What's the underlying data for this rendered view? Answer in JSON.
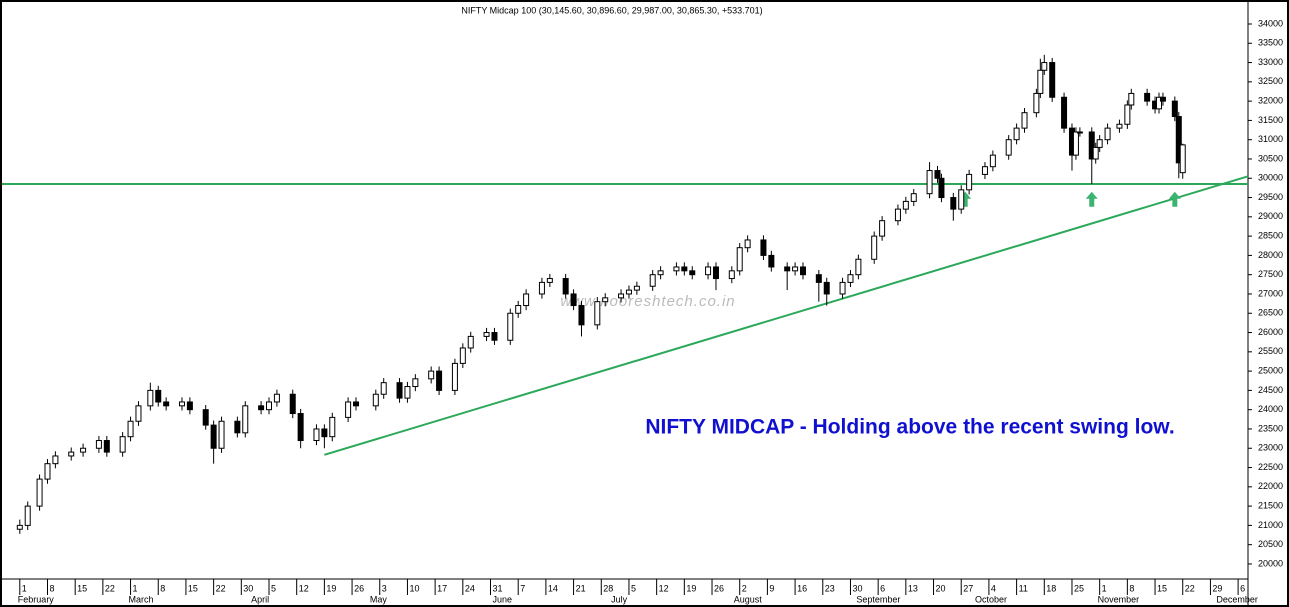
{
  "chart_data": {
    "type": "candlestick",
    "title": "NIFTY Midcap 100 (30,145.60, 30,896.60, 29,987.00, 30,865.30, +533.701)",
    "annotation": "NIFTY MIDCAP - Holding above the recent swing low.",
    "watermark": "www.nooreshtech.co.in",
    "xlim": [
      27.5,
      342.5
    ],
    "ylim": [
      19610,
      34570
    ],
    "yticks": [
      20000,
      20500,
      21000,
      21500,
      22000,
      22500,
      23000,
      23500,
      24000,
      24500,
      25000,
      25500,
      26000,
      26500,
      27000,
      27500,
      28000,
      28500,
      29000,
      29500,
      30000,
      30500,
      31000,
      31500,
      32000,
      32500,
      33000,
      33500,
      34000
    ],
    "xticks": [
      {
        "value": 32,
        "label": "1"
      },
      {
        "value": 39,
        "label": "8"
      },
      {
        "value": 46,
        "label": "15"
      },
      {
        "value": 53,
        "label": "22"
      },
      {
        "value": 60,
        "label": "1"
      },
      {
        "value": 67,
        "label": "8"
      },
      {
        "value": 74,
        "label": "15"
      },
      {
        "value": 81,
        "label": "22"
      },
      {
        "value": 88,
        "label": "30"
      },
      {
        "value": 95,
        "label": "5"
      },
      {
        "value": 102,
        "label": "12"
      },
      {
        "value": 109,
        "label": "19"
      },
      {
        "value": 116,
        "label": "26"
      },
      {
        "value": 123,
        "label": "3"
      },
      {
        "value": 130,
        "label": "10"
      },
      {
        "value": 137,
        "label": "17"
      },
      {
        "value": 144,
        "label": "24"
      },
      {
        "value": 151,
        "label": "31"
      },
      {
        "value": 158,
        "label": "7"
      },
      {
        "value": 165,
        "label": "14"
      },
      {
        "value": 172,
        "label": "21"
      },
      {
        "value": 179,
        "label": "28"
      },
      {
        "value": 186,
        "label": "5"
      },
      {
        "value": 193,
        "label": "12"
      },
      {
        "value": 200,
        "label": "19"
      },
      {
        "value": 207,
        "label": "26"
      },
      {
        "value": 214,
        "label": "2"
      },
      {
        "value": 221,
        "label": "9"
      },
      {
        "value": 228,
        "label": "16"
      },
      {
        "value": 235,
        "label": "23"
      },
      {
        "value": 242,
        "label": "30"
      },
      {
        "value": 249,
        "label": "6"
      },
      {
        "value": 256,
        "label": "13"
      },
      {
        "value": 263,
        "label": "20"
      },
      {
        "value": 270,
        "label": "27"
      },
      {
        "value": 277,
        "label": "4"
      },
      {
        "value": 284,
        "label": "11"
      },
      {
        "value": 291,
        "label": "18"
      },
      {
        "value": 298,
        "label": "25"
      },
      {
        "value": 305,
        "label": "1"
      },
      {
        "value": 312,
        "label": "8"
      },
      {
        "value": 319,
        "label": "15"
      },
      {
        "value": 326,
        "label": "22"
      },
      {
        "value": 333,
        "label": "29"
      },
      {
        "value": 340,
        "label": "6"
      }
    ],
    "months": [
      {
        "value": 32,
        "label": "February"
      },
      {
        "value": 60,
        "label": "March"
      },
      {
        "value": 91,
        "label": "April"
      },
      {
        "value": 121,
        "label": "May"
      },
      {
        "value": 152,
        "label": "June"
      },
      {
        "value": 182,
        "label": "July"
      },
      {
        "value": 213,
        "label": "August"
      },
      {
        "value": 244,
        "label": "September"
      },
      {
        "value": 274,
        "label": "October"
      },
      {
        "value": 305,
        "label": "November"
      },
      {
        "value": 335,
        "label": "December"
      }
    ],
    "up_color": "#ffffff",
    "down_color": "#000000",
    "line_color": "#2ca85a",
    "support_level": 29850,
    "trendline": {
      "start": [
        109,
        22830
      ],
      "end": [
        342.5,
        30050
      ]
    },
    "arrows": [
      {
        "x": 271,
        "y": 29650
      },
      {
        "x": 303,
        "y": 29650
      },
      {
        "x": 324,
        "y": 29650
      }
    ],
    "candles": [
      {
        "x": 32,
        "open": 20900,
        "high": 21150,
        "low": 20780,
        "close": 21000
      },
      {
        "x": 34,
        "open": 21000,
        "high": 21620,
        "low": 20880,
        "close": 21500
      },
      {
        "x": 37,
        "open": 21500,
        "high": 22320,
        "low": 21380,
        "close": 22200
      },
      {
        "x": 39,
        "open": 22200,
        "high": 22720,
        "low": 22080,
        "close": 22600
      },
      {
        "x": 41,
        "open": 22600,
        "high": 22920,
        "low": 22480,
        "close": 22800
      },
      {
        "x": 45,
        "open": 22800,
        "high": 23020,
        "low": 22680,
        "close": 22900
      },
      {
        "x": 48,
        "open": 22900,
        "high": 23120,
        "low": 22780,
        "close": 23000
      },
      {
        "x": 52,
        "open": 23000,
        "high": 23320,
        "low": 22880,
        "close": 23200
      },
      {
        "x": 54,
        "open": 23200,
        "high": 23320,
        "low": 22780,
        "close": 22900
      },
      {
        "x": 58,
        "open": 22900,
        "high": 23420,
        "low": 22780,
        "close": 23300
      },
      {
        "x": 60,
        "open": 23300,
        "high": 23820,
        "low": 23180,
        "close": 23700
      },
      {
        "x": 62,
        "open": 23700,
        "high": 24220,
        "low": 23580,
        "close": 24100
      },
      {
        "x": 65,
        "open": 24100,
        "high": 24700,
        "low": 23980,
        "close": 24500
      },
      {
        "x": 67,
        "open": 24500,
        "high": 24620,
        "low": 24080,
        "close": 24200
      },
      {
        "x": 69,
        "open": 24200,
        "high": 24320,
        "low": 23980,
        "close": 24100
      },
      {
        "x": 73,
        "open": 24100,
        "high": 24320,
        "low": 23980,
        "close": 24200
      },
      {
        "x": 75,
        "open": 24200,
        "high": 24320,
        "low": 23880,
        "close": 24000
      },
      {
        "x": 79,
        "open": 24000,
        "high": 24120,
        "low": 23480,
        "close": 23600
      },
      {
        "x": 81,
        "open": 23600,
        "high": 23720,
        "low": 22600,
        "close": 23000
      },
      {
        "x": 83,
        "open": 23000,
        "high": 23820,
        "low": 22880,
        "close": 23700
      },
      {
        "x": 87,
        "open": 23700,
        "high": 23820,
        "low": 23280,
        "close": 23400
      },
      {
        "x": 89,
        "open": 23400,
        "high": 24220,
        "low": 23280,
        "close": 24100
      },
      {
        "x": 93,
        "open": 24100,
        "high": 24220,
        "low": 23880,
        "close": 24000
      },
      {
        "x": 95,
        "open": 24000,
        "high": 24320,
        "low": 23880,
        "close": 24200
      },
      {
        "x": 97,
        "open": 24200,
        "high": 24520,
        "low": 24080,
        "close": 24400
      },
      {
        "x": 101,
        "open": 24400,
        "high": 24520,
        "low": 23780,
        "close": 23900
      },
      {
        "x": 103,
        "open": 23900,
        "high": 24020,
        "low": 23000,
        "close": 23200
      },
      {
        "x": 107,
        "open": 23200,
        "high": 23620,
        "low": 23080,
        "close": 23500
      },
      {
        "x": 109,
        "open": 23500,
        "high": 23620,
        "low": 23000,
        "close": 23300
      },
      {
        "x": 111,
        "open": 23300,
        "high": 23920,
        "low": 23180,
        "close": 23800
      },
      {
        "x": 115,
        "open": 23800,
        "high": 24320,
        "low": 23680,
        "close": 24200
      },
      {
        "x": 117,
        "open": 24200,
        "high": 24320,
        "low": 23980,
        "close": 24100
      },
      {
        "x": 122,
        "open": 24100,
        "high": 24520,
        "low": 23980,
        "close": 24400
      },
      {
        "x": 124,
        "open": 24400,
        "high": 24820,
        "low": 24280,
        "close": 24700
      },
      {
        "x": 128,
        "open": 24700,
        "high": 24820,
        "low": 24180,
        "close": 24300
      },
      {
        "x": 130,
        "open": 24300,
        "high": 24720,
        "low": 24180,
        "close": 24600
      },
      {
        "x": 132,
        "open": 24600,
        "high": 24920,
        "low": 24480,
        "close": 24800
      },
      {
        "x": 136,
        "open": 24800,
        "high": 25120,
        "low": 24680,
        "close": 25000
      },
      {
        "x": 138,
        "open": 25000,
        "high": 25120,
        "low": 24380,
        "close": 24500
      },
      {
        "x": 142,
        "open": 24500,
        "high": 25320,
        "low": 24380,
        "close": 25200
      },
      {
        "x": 144,
        "open": 25200,
        "high": 25720,
        "low": 25080,
        "close": 25600
      },
      {
        "x": 146,
        "open": 25600,
        "high": 26020,
        "low": 25480,
        "close": 25900
      },
      {
        "x": 150,
        "open": 25900,
        "high": 26120,
        "low": 25780,
        "close": 26000
      },
      {
        "x": 152,
        "open": 26000,
        "high": 26120,
        "low": 25680,
        "close": 25800
      },
      {
        "x": 156,
        "open": 25800,
        "high": 26620,
        "low": 25680,
        "close": 26500
      },
      {
        "x": 158,
        "open": 26500,
        "high": 26820,
        "low": 26380,
        "close": 26700
      },
      {
        "x": 160,
        "open": 26700,
        "high": 27120,
        "low": 26580,
        "close": 27000
      },
      {
        "x": 164,
        "open": 27000,
        "high": 27420,
        "low": 26880,
        "close": 27300
      },
      {
        "x": 166,
        "open": 27300,
        "high": 27520,
        "low": 27180,
        "close": 27400
      },
      {
        "x": 170,
        "open": 27400,
        "high": 27520,
        "low": 26880,
        "close": 27000
      },
      {
        "x": 172,
        "open": 27000,
        "high": 27120,
        "low": 26580,
        "close": 26700
      },
      {
        "x": 174,
        "open": 26700,
        "high": 26820,
        "low": 25900,
        "close": 26200
      },
      {
        "x": 178,
        "open": 26200,
        "high": 26920,
        "low": 26080,
        "close": 26800
      },
      {
        "x": 180,
        "open": 26800,
        "high": 27020,
        "low": 26680,
        "close": 26900
      },
      {
        "x": 184,
        "open": 26900,
        "high": 27120,
        "low": 26780,
        "close": 27000
      },
      {
        "x": 186,
        "open": 27000,
        "high": 27220,
        "low": 26880,
        "close": 27100
      },
      {
        "x": 188,
        "open": 27100,
        "high": 27320,
        "low": 26980,
        "close": 27200
      },
      {
        "x": 192,
        "open": 27200,
        "high": 27620,
        "low": 27080,
        "close": 27500
      },
      {
        "x": 194,
        "open": 27500,
        "high": 27720,
        "low": 27380,
        "close": 27600
      },
      {
        "x": 198,
        "open": 27600,
        "high": 27820,
        "low": 27480,
        "close": 27700
      },
      {
        "x": 200,
        "open": 27700,
        "high": 27820,
        "low": 27480,
        "close": 27600
      },
      {
        "x": 202,
        "open": 27600,
        "high": 27720,
        "low": 27380,
        "close": 27500
      },
      {
        "x": 206,
        "open": 27500,
        "high": 27820,
        "low": 27380,
        "close": 27700
      },
      {
        "x": 208,
        "open": 27700,
        "high": 27820,
        "low": 27100,
        "close": 27400
      },
      {
        "x": 212,
        "open": 27400,
        "high": 27720,
        "low": 27280,
        "close": 27600
      },
      {
        "x": 214,
        "open": 27600,
        "high": 28320,
        "low": 27480,
        "close": 28200
      },
      {
        "x": 216,
        "open": 28200,
        "high": 28520,
        "low": 28080,
        "close": 28400
      },
      {
        "x": 220,
        "open": 28400,
        "high": 28520,
        "low": 27880,
        "close": 28000
      },
      {
        "x": 222,
        "open": 28000,
        "high": 28120,
        "low": 27580,
        "close": 27700
      },
      {
        "x": 226,
        "open": 27700,
        "high": 27820,
        "low": 27100,
        "close": 27600
      },
      {
        "x": 228,
        "open": 27600,
        "high": 27820,
        "low": 27480,
        "close": 27700
      },
      {
        "x": 230,
        "open": 27700,
        "high": 27820,
        "low": 27380,
        "close": 27500
      },
      {
        "x": 234,
        "open": 27500,
        "high": 27620,
        "low": 26800,
        "close": 27300
      },
      {
        "x": 236,
        "open": 27300,
        "high": 27420,
        "low": 26700,
        "close": 27000
      },
      {
        "x": 240,
        "open": 27000,
        "high": 27420,
        "low": 26880,
        "close": 27300
      },
      {
        "x": 242,
        "open": 27300,
        "high": 27620,
        "low": 27180,
        "close": 27500
      },
      {
        "x": 244,
        "open": 27500,
        "high": 28020,
        "low": 27380,
        "close": 27900
      },
      {
        "x": 248,
        "open": 27900,
        "high": 28620,
        "low": 27780,
        "close": 28500
      },
      {
        "x": 250,
        "open": 28500,
        "high": 29020,
        "low": 28380,
        "close": 28900
      },
      {
        "x": 254,
        "open": 28900,
        "high": 29320,
        "low": 28780,
        "close": 29200
      },
      {
        "x": 256,
        "open": 29200,
        "high": 29520,
        "low": 29080,
        "close": 29400
      },
      {
        "x": 258,
        "open": 29400,
        "high": 29720,
        "low": 29280,
        "close": 29600
      },
      {
        "x": 262,
        "open": 29600,
        "high": 30420,
        "low": 29480,
        "close": 30200
      },
      {
        "x": 264,
        "open": 30200,
        "high": 30320,
        "low": 29880,
        "close": 30000
      },
      {
        "x": 265,
        "open": 30000,
        "high": 30120,
        "low": 29380,
        "close": 29500
      },
      {
        "x": 268,
        "open": 29500,
        "high": 29620,
        "low": 28900,
        "close": 29200
      },
      {
        "x": 270,
        "open": 29200,
        "high": 29820,
        "low": 29080,
        "close": 29700
      },
      {
        "x": 272,
        "open": 29700,
        "high": 30220,
        "low": 29580,
        "close": 30100
      },
      {
        "x": 276,
        "open": 30100,
        "high": 30420,
        "low": 29980,
        "close": 30300
      },
      {
        "x": 278,
        "open": 30300,
        "high": 30720,
        "low": 30180,
        "close": 30600
      },
      {
        "x": 282,
        "open": 30600,
        "high": 31120,
        "low": 30480,
        "close": 31000
      },
      {
        "x": 284,
        "open": 31000,
        "high": 31420,
        "low": 30880,
        "close": 31300
      },
      {
        "x": 286,
        "open": 31300,
        "high": 31820,
        "low": 31180,
        "close": 31700
      },
      {
        "x": 289,
        "open": 31700,
        "high": 32320,
        "low": 31580,
        "close": 32200
      },
      {
        "x": 290,
        "open": 32200,
        "high": 33100,
        "low": 32080,
        "close": 32800
      },
      {
        "x": 291,
        "open": 32800,
        "high": 33200,
        "low": 32680,
        "close": 33000
      },
      {
        "x": 293,
        "open": 33000,
        "high": 33120,
        "low": 31980,
        "close": 32100
      },
      {
        "x": 296,
        "open": 32100,
        "high": 32220,
        "low": 31180,
        "close": 31300
      },
      {
        "x": 298,
        "open": 31300,
        "high": 31420,
        "low": 30200,
        "close": 30600
      },
      {
        "x": 299,
        "open": 30600,
        "high": 31320,
        "low": 30480,
        "close": 31200
      },
      {
        "x": 300,
        "open": 31200,
        "high": 31320,
        "low": 31080,
        "close": 31200
      },
      {
        "x": 303,
        "open": 31200,
        "high": 31320,
        "low": 29850,
        "close": 30500
      },
      {
        "x": 304,
        "open": 30500,
        "high": 30920,
        "low": 30380,
        "close": 30800
      },
      {
        "x": 305,
        "open": 30800,
        "high": 31120,
        "low": 30680,
        "close": 31000
      },
      {
        "x": 307,
        "open": 31000,
        "high": 31420,
        "low": 30880,
        "close": 31300
      },
      {
        "x": 310,
        "open": 31300,
        "high": 31520,
        "low": 31180,
        "close": 31400
      },
      {
        "x": 312,
        "open": 31400,
        "high": 32020,
        "low": 31280,
        "close": 31900
      },
      {
        "x": 313,
        "open": 31900,
        "high": 32320,
        "low": 31780,
        "close": 32200
      },
      {
        "x": 317,
        "open": 32200,
        "high": 32320,
        "low": 31880,
        "close": 32000
      },
      {
        "x": 319,
        "open": 32000,
        "high": 32120,
        "low": 31680,
        "close": 31800
      },
      {
        "x": 320,
        "open": 31800,
        "high": 32220,
        "low": 31680,
        "close": 32100
      },
      {
        "x": 321,
        "open": 32100,
        "high": 32220,
        "low": 31880,
        "close": 32000
      },
      {
        "x": 324,
        "open": 32000,
        "high": 32120,
        "low": 31480,
        "close": 31600
      },
      {
        "x": 325,
        "open": 31600,
        "high": 31720,
        "low": 30000,
        "close": 30400
      },
      {
        "x": 326,
        "open": 30145.6,
        "high": 30896.6,
        "low": 29987,
        "close": 30865.3
      }
    ]
  }
}
